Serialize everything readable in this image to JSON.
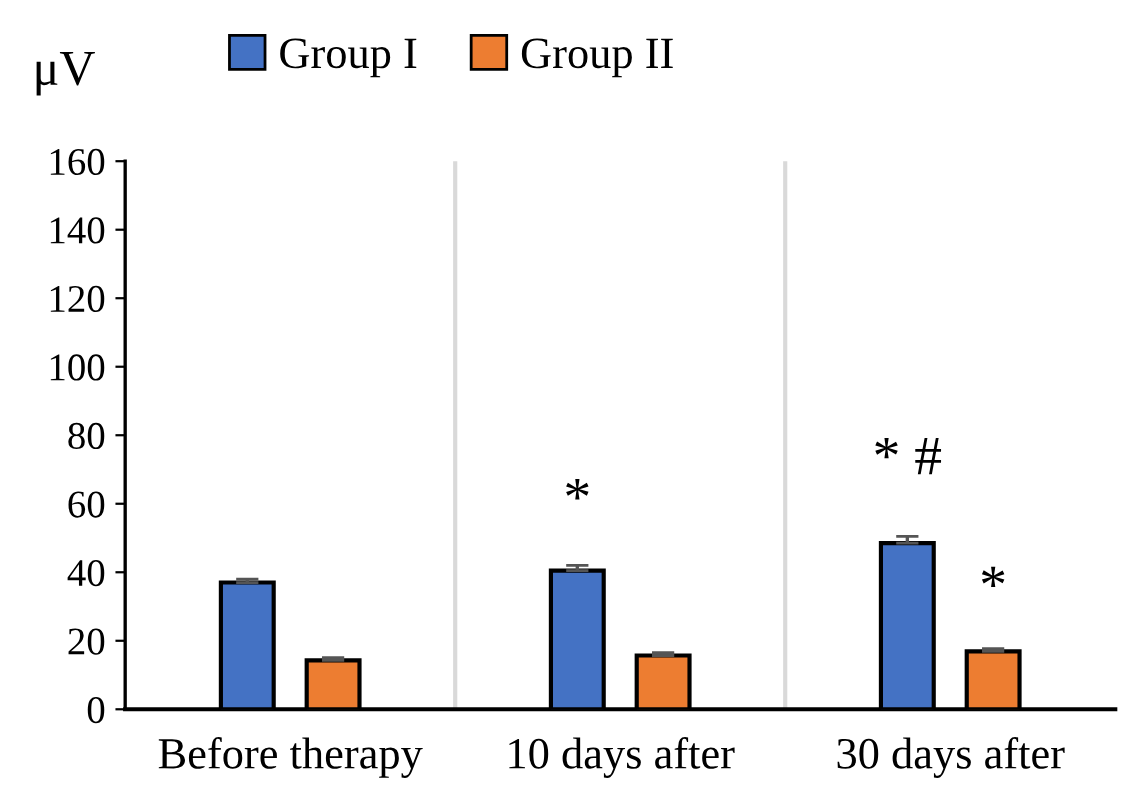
{
  "chart_data": {
    "type": "bar",
    "ylabel": "μV",
    "categories": [
      "Before therapy",
      "10 days after",
      "30 days after"
    ],
    "series": [
      {
        "name": "Group I",
        "color": "#4472c4",
        "values": [
          37,
          40.5,
          48.5
        ],
        "errors": [
          1,
          1.5,
          2
        ]
      },
      {
        "name": "Group II",
        "color": "#ed7d31",
        "values": [
          14.3,
          15.7,
          16.9
        ],
        "errors": [
          0.8,
          0.8,
          0.8
        ]
      }
    ],
    "annotations": [
      "*",
      "* #",
      "*"
    ],
    "ylim": [
      0,
      160
    ],
    "yticks": [
      0,
      20,
      40,
      60,
      80,
      100,
      120,
      140,
      160
    ],
    "grid": "x",
    "legend": "top"
  }
}
